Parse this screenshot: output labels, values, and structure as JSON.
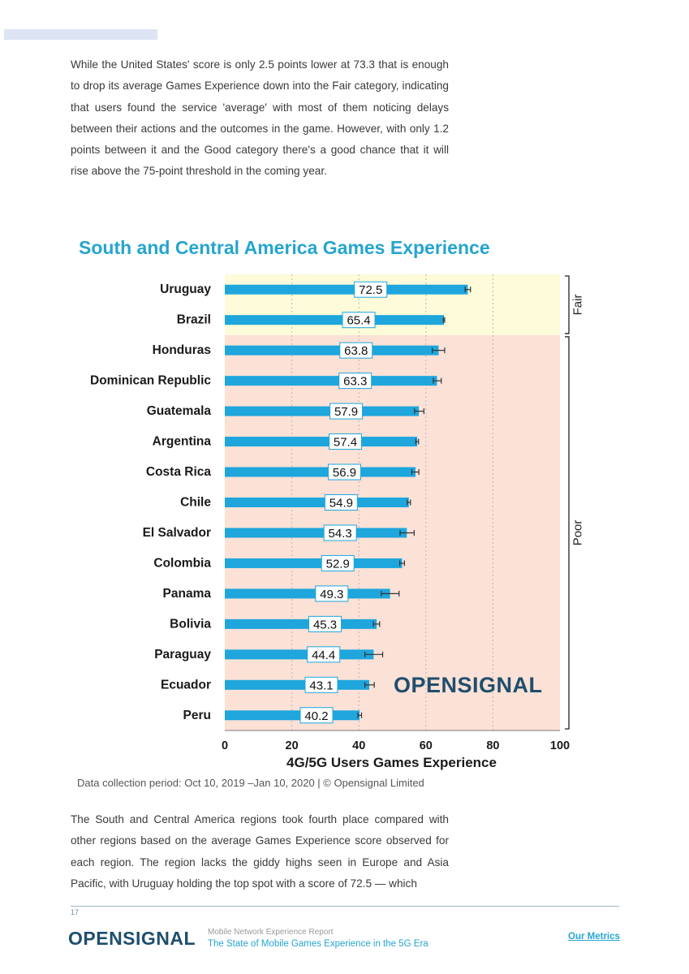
{
  "page": {
    "intro_paragraph": "While the United States' score is only 2.5 points lower at 73.3 that is enough to drop its average Games Experience down into the Fair category, indicating that users found the service 'average' with most of them noticing delays between their actions and the outcomes in the game. However, with only 1.2 points between it and the Good category there's a good chance that it will rise above the 75-point threshold in the coming year.",
    "caption": "Data collection period: Oct 10, 2019 –Jan 10, 2020 | © Opensignal Limited",
    "closing_paragraph": "The South and Central America regions took fourth place compared with other regions based on the average Games Experience score observed for each region. The region lacks the giddy highs seen in Europe and Asia Pacific, with Uruguay holding the top spot with a score of 72.5 — which"
  },
  "footer": {
    "page_number": "17",
    "logo_text": "OPENSIGNAL",
    "report_name": "Mobile Network Experience Report",
    "report_subtitle": "The State of Mobile Games Experience in the 5G Era",
    "link_label": "Our Metrics"
  },
  "chart_data": {
    "type": "bar",
    "orientation": "horizontal",
    "title": "South and Central America Games Experience",
    "xlabel": "4G/5G Users Games Experience",
    "ylabel": "",
    "xlim": [
      0,
      100
    ],
    "xticks": [
      0,
      20,
      40,
      60,
      80,
      100
    ],
    "grid": "vertical dotted at 20, 40, 60, 80",
    "categories": [
      "Uruguay",
      "Brazil",
      "Honduras",
      "Dominican Republic",
      "Guatemala",
      "Argentina",
      "Costa Rica",
      "Chile",
      "El Salvador",
      "Colombia",
      "Panama",
      "Bolivia",
      "Paraguay",
      "Ecuador",
      "Peru"
    ],
    "values": [
      72.5,
      65.4,
      63.8,
      63.3,
      57.9,
      57.4,
      56.9,
      54.9,
      54.3,
      52.9,
      49.3,
      45.3,
      44.4,
      43.1,
      40.2
    ],
    "error_low": [
      71.7,
      65.2,
      61.9,
      62.2,
      56.6,
      57.0,
      55.8,
      54.4,
      52.3,
      52.2,
      46.7,
      44.3,
      41.8,
      41.8,
      39.7
    ],
    "error_high": [
      73.3,
      65.6,
      65.6,
      64.6,
      59.4,
      57.8,
      57.9,
      55.4,
      56.5,
      53.6,
      52.0,
      46.2,
      47.1,
      44.6,
      40.8
    ],
    "bands": [
      {
        "label": "Fair",
        "categories": [
          "Uruguay",
          "Brazil"
        ],
        "color": "#fdfbd9"
      },
      {
        "label": "Poor",
        "categories": [
          "Honduras",
          "Dominican Republic",
          "Guatemala",
          "Argentina",
          "Costa Rica",
          "Chile",
          "El Salvador",
          "Colombia",
          "Panama",
          "Bolivia",
          "Paraguay",
          "Ecuador",
          "Peru"
        ],
        "color": "#fbe1d6"
      }
    ],
    "bar_color": "#1ea6dd",
    "watermark": "OPENSIGNAL"
  },
  "colors": {
    "accent": "#25a5cf",
    "brand_dark": "#1f4e6e"
  }
}
